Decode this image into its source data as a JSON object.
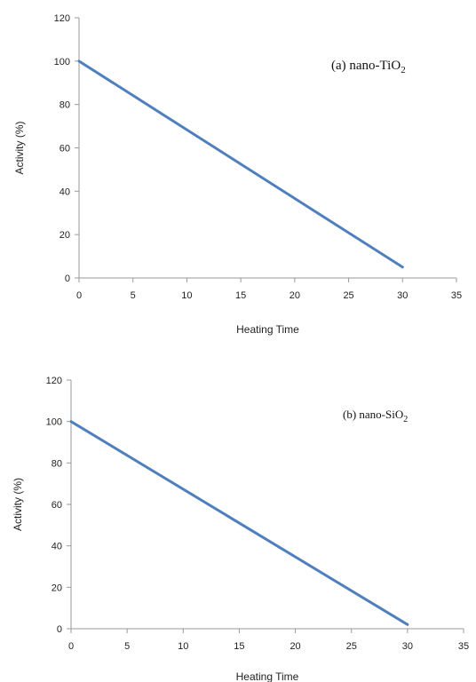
{
  "chart_data": [
    {
      "type": "line",
      "annotation": {
        "prefix": "(a) nano-TiO",
        "subscript": "2"
      },
      "xlabel": "Heating Time",
      "ylabel": "Activity (%)",
      "xlim": [
        0,
        35
      ],
      "ylim": [
        0,
        120
      ],
      "xticks": [
        0,
        5,
        10,
        15,
        20,
        25,
        30,
        35
      ],
      "yticks": [
        0,
        20,
        40,
        60,
        80,
        100,
        120
      ],
      "grid": false,
      "series": [
        {
          "color": "#4f7fbd",
          "x": [
            0,
            30
          ],
          "y": [
            100,
            5
          ]
        }
      ]
    },
    {
      "type": "line",
      "annotation": {
        "prefix": "(b) nano-SiO",
        "subscript": "2"
      },
      "xlabel": "Heating Time",
      "ylabel": "Activity (%)",
      "xlim": [
        0,
        35
      ],
      "ylim": [
        0,
        120
      ],
      "xticks": [
        0,
        5,
        10,
        15,
        20,
        25,
        30,
        35
      ],
      "yticks": [
        0,
        20,
        40,
        60,
        80,
        100,
        120
      ],
      "grid": false,
      "series": [
        {
          "color": "#4f7fbd",
          "x": [
            0,
            30
          ],
          "y": [
            100,
            2
          ]
        }
      ]
    }
  ]
}
